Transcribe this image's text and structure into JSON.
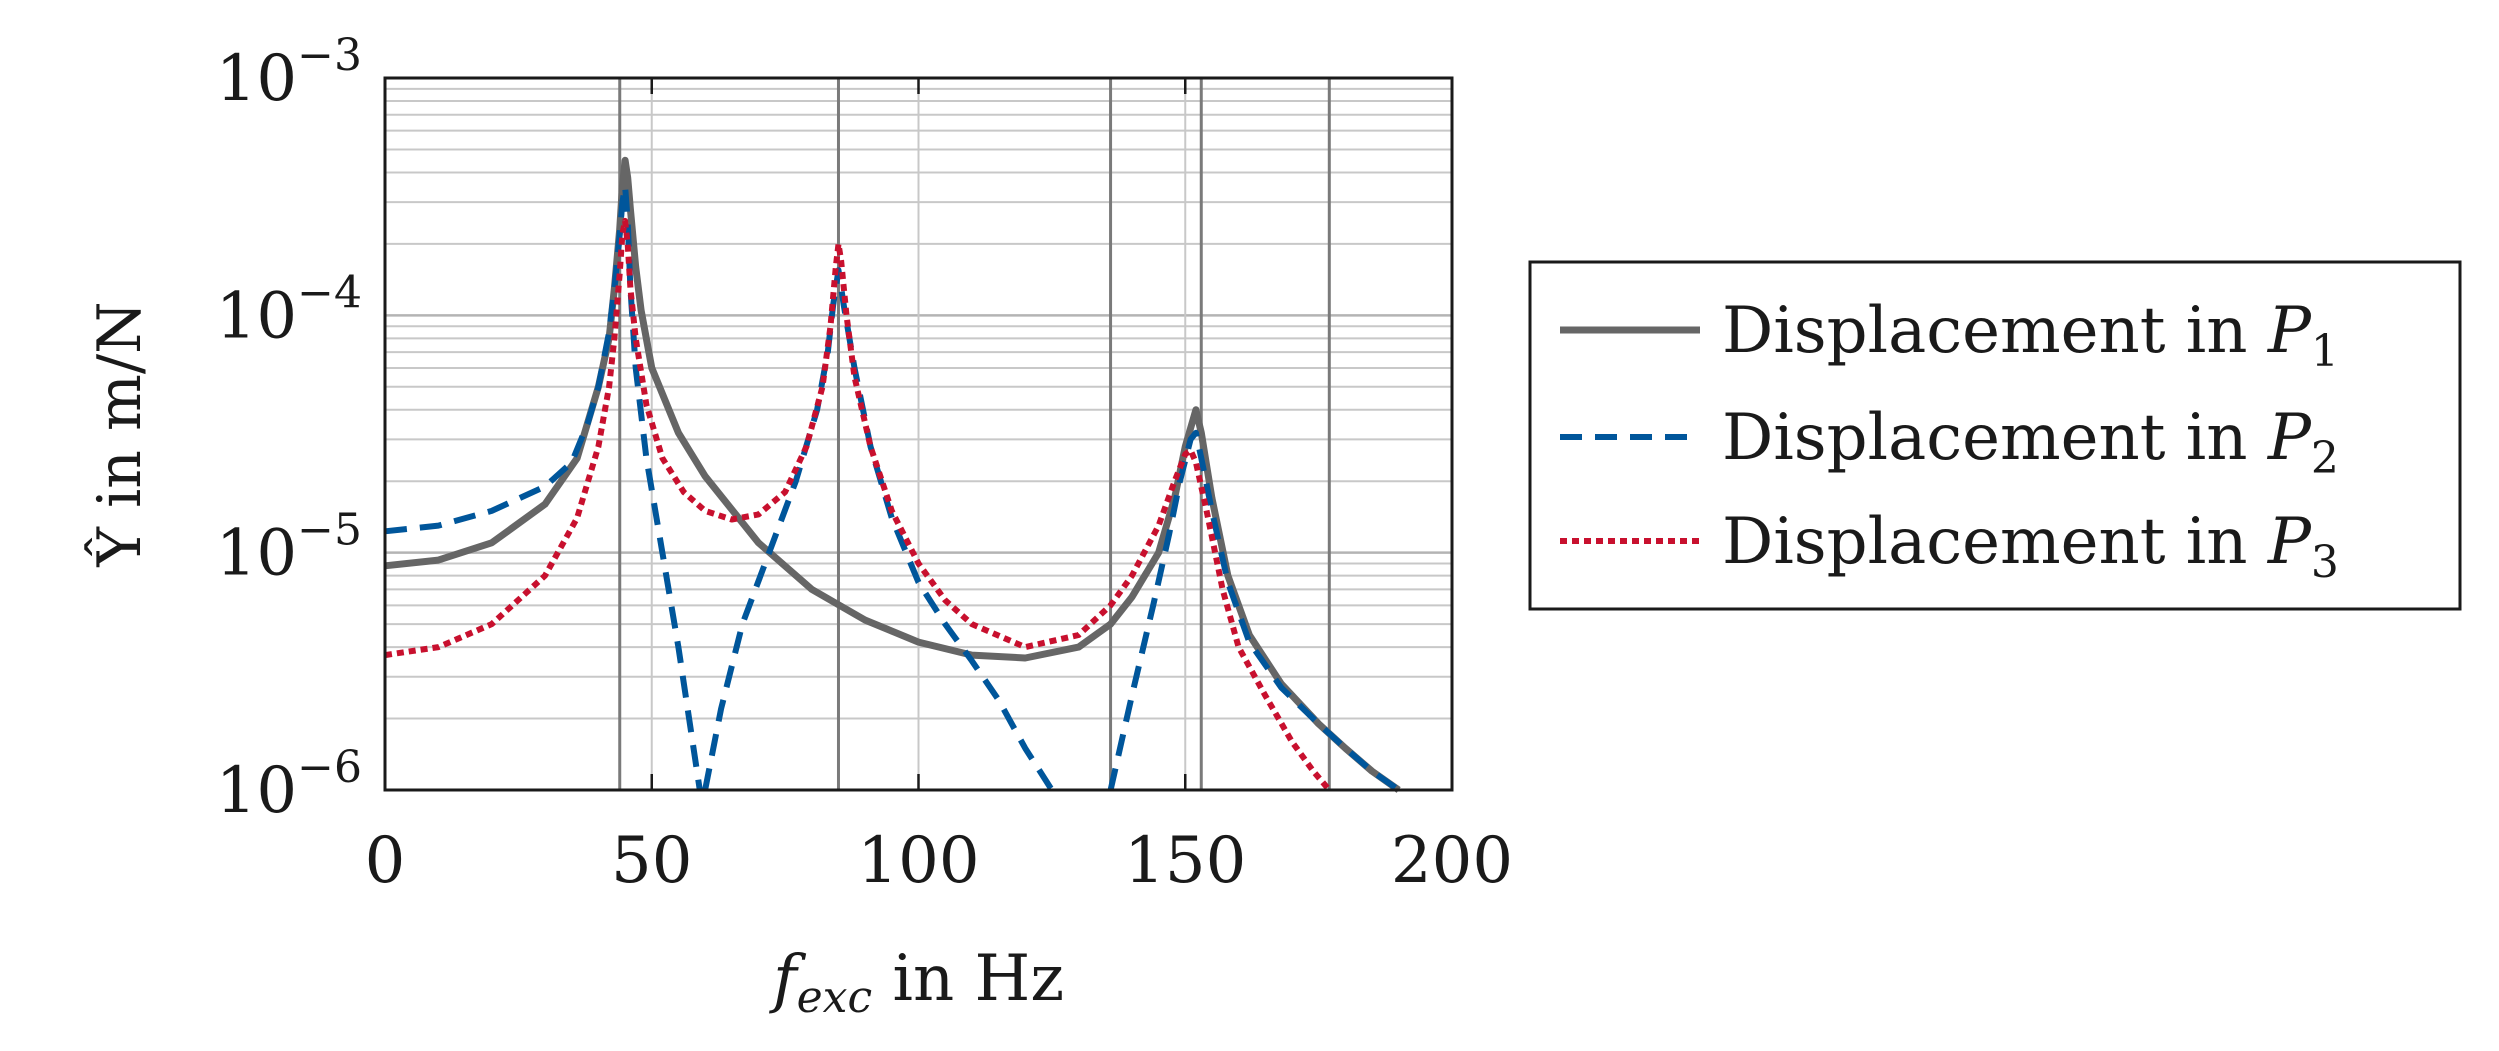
{
  "chart_data": {
    "type": "line",
    "title": "",
    "xlabel": {
      "main": "f",
      "sub": "exc",
      "unit": " in Hz"
    },
    "ylabel": {
      "main": "Ŷ",
      "unit": " in m/N"
    },
    "xlim": [
      0,
      200
    ],
    "ylim_log10": [
      -6,
      -3
    ],
    "y_scale": "log",
    "grid": true,
    "legend_position": "outside-right",
    "x_ticks": [
      {
        "v": 0,
        "label": "0"
      },
      {
        "v": 50,
        "label": "50"
      },
      {
        "v": 100,
        "label": "100"
      },
      {
        "v": 150,
        "label": "150"
      },
      {
        "v": 200,
        "label": "200"
      }
    ],
    "y_ticks": [
      {
        "exp": -6,
        "base": "10",
        "sup": "−6"
      },
      {
        "exp": -5,
        "base": "10",
        "sup": "−5"
      },
      {
        "exp": -4,
        "base": "10",
        "sup": "−4"
      },
      {
        "exp": -3,
        "base": "10",
        "sup": "−3"
      }
    ],
    "resonance_lines_x": [
      44,
      85,
      136,
      153,
      177
    ],
    "series": [
      {
        "name": "Displacement in P1",
        "label_main": "Displacement in ",
        "label_var": "P",
        "label_sub": "1",
        "color": "#666666",
        "dash": "solid",
        "points": [
          [
            0,
            8.8e-06
          ],
          [
            10,
            9.3e-06
          ],
          [
            20,
            1.1e-05
          ],
          [
            30,
            1.6e-05
          ],
          [
            36,
            2.5e-05
          ],
          [
            40,
            5e-05
          ],
          [
            42,
            8e-05
          ],
          [
            43,
            0.00013
          ],
          [
            44,
            0.00023
          ],
          [
            44.5,
            0.00035
          ],
          [
            45,
            0.00045
          ],
          [
            45.5,
            0.00038
          ],
          [
            46,
            0.00028
          ],
          [
            47,
            0.00016
          ],
          [
            48,
            0.000105
          ],
          [
            50,
            6e-05
          ],
          [
            55,
            3.2e-05
          ],
          [
            60,
            2.1e-05
          ],
          [
            70,
            1.1e-05
          ],
          [
            80,
            7e-06
          ],
          [
            90,
            5.2e-06
          ],
          [
            100,
            4.2e-06
          ],
          [
            110,
            3.7e-06
          ],
          [
            120,
            3.6e-06
          ],
          [
            130,
            4e-06
          ],
          [
            136,
            5e-06
          ],
          [
            140,
            6.5e-06
          ],
          [
            145,
            1e-05
          ],
          [
            148,
            1.7e-05
          ],
          [
            150,
            2.8e-05
          ],
          [
            152,
            4e-05
          ],
          [
            153,
            3.2e-05
          ],
          [
            155,
            1.7e-05
          ],
          [
            158,
            8e-06
          ],
          [
            162,
            4.5e-06
          ],
          [
            168,
            2.8e-06
          ],
          [
            175,
            1.9e-06
          ],
          [
            180,
            1.5e-06
          ],
          [
            185,
            1.2e-06
          ],
          [
            190,
            1e-06
          ]
        ]
      },
      {
        "name": "Displacement in P2",
        "label_main": "Displacement in ",
        "label_var": "P",
        "label_sub": "2",
        "color": "#00569b",
        "dash": "dashed",
        "points": [
          [
            0,
            1.23e-05
          ],
          [
            10,
            1.3e-05
          ],
          [
            20,
            1.5e-05
          ],
          [
            30,
            1.9e-05
          ],
          [
            35,
            2.4e-05
          ],
          [
            38,
            3.5e-05
          ],
          [
            40,
            5e-05
          ],
          [
            42,
            8.5e-05
          ],
          [
            43,
            0.00013
          ],
          [
            44,
            0.00022
          ],
          [
            44.5,
            0.0003
          ],
          [
            45,
            0.00035
          ],
          [
            45.5,
            0.00025
          ],
          [
            46,
            0.00013
          ],
          [
            47,
            6e-05
          ],
          [
            49,
            2.5e-05
          ],
          [
            52,
            1e-05
          ],
          [
            55,
            4e-06
          ],
          [
            57,
            2e-06
          ],
          [
            59,
            1e-06
          ]
        ],
        "points_b": [
          [
            60,
            1e-06
          ],
          [
            63,
            2.2e-06
          ],
          [
            67,
            5e-06
          ],
          [
            72,
            1e-05
          ],
          [
            77,
            2e-05
          ],
          [
            81,
            4e-05
          ],
          [
            83,
            7e-05
          ],
          [
            84,
            0.00011
          ],
          [
            85,
            0.000155
          ],
          [
            86,
            0.00011
          ],
          [
            88,
            6e-05
          ],
          [
            91,
            2.8e-05
          ],
          [
            95,
            1.4e-05
          ],
          [
            100,
            7.5e-06
          ],
          [
            105,
            5e-06
          ],
          [
            110,
            3.5e-06
          ],
          [
            115,
            2.4e-06
          ],
          [
            120,
            1.5e-06
          ],
          [
            125,
            1e-06
          ]
        ],
        "points_c": [
          [
            136,
            1e-06
          ],
          [
            140,
            2.5e-06
          ],
          [
            144,
            6e-06
          ],
          [
            147,
            1.2e-05
          ],
          [
            149,
            2e-05
          ],
          [
            151,
            3e-05
          ],
          [
            152,
            3.2e-05
          ],
          [
            153,
            2.5e-05
          ],
          [
            155,
            1.5e-05
          ],
          [
            158,
            7.5e-06
          ],
          [
            162,
            4.2e-06
          ],
          [
            168,
            2.7e-06
          ],
          [
            175,
            1.9e-06
          ],
          [
            180,
            1.5e-06
          ],
          [
            185,
            1.2e-06
          ],
          [
            190,
            1e-06
          ]
        ]
      },
      {
        "name": "Displacement in P3",
        "label_main": "Displacement in ",
        "label_var": "P",
        "label_sub": "3",
        "color": "#c8102e",
        "dash": "dotted",
        "points": [
          [
            0,
            3.7e-06
          ],
          [
            10,
            4e-06
          ],
          [
            20,
            5e-06
          ],
          [
            30,
            8e-06
          ],
          [
            36,
            1.4e-05
          ],
          [
            40,
            2.8e-05
          ],
          [
            42,
            5e-05
          ],
          [
            43,
            8e-05
          ],
          [
            44,
            0.00015
          ],
          [
            44.5,
            0.00022
          ],
          [
            45,
            0.00025
          ],
          [
            45.5,
            0.0002
          ],
          [
            46,
            0.00013
          ],
          [
            47,
            8e-05
          ],
          [
            49,
            4.2e-05
          ],
          [
            52,
            2.5e-05
          ],
          [
            56,
            1.8e-05
          ],
          [
            60,
            1.5e-05
          ],
          [
            65,
            1.38e-05
          ],
          [
            70,
            1.45e-05
          ],
          [
            75,
            1.8e-05
          ],
          [
            79,
            2.8e-05
          ],
          [
            82,
            5e-05
          ],
          [
            83.5,
            9e-05
          ],
          [
            84.5,
            0.00016
          ],
          [
            85,
            0.0002
          ],
          [
            85.5,
            0.00017
          ],
          [
            86.5,
            0.0001
          ],
          [
            88,
            5.5e-05
          ],
          [
            91,
            2.8e-05
          ],
          [
            95,
            1.5e-05
          ],
          [
            100,
            9e-06
          ],
          [
            105,
            6.3e-06
          ],
          [
            110,
            5e-06
          ],
          [
            120,
            4e-06
          ],
          [
            130,
            4.5e-06
          ],
          [
            136,
            6e-06
          ],
          [
            140,
            8e-06
          ],
          [
            145,
            1.3e-05
          ],
          [
            148,
            2e-05
          ],
          [
            150,
            2.6e-05
          ],
          [
            151,
            2.7e-05
          ],
          [
            152,
            2.4e-05
          ],
          [
            154,
            1.5e-05
          ],
          [
            157,
            7e-06
          ],
          [
            160,
            4e-06
          ],
          [
            165,
            2.5e-06
          ],
          [
            170,
            1.6e-06
          ],
          [
            174,
            1.2e-06
          ],
          [
            177,
            1e-06
          ]
        ]
      }
    ]
  }
}
